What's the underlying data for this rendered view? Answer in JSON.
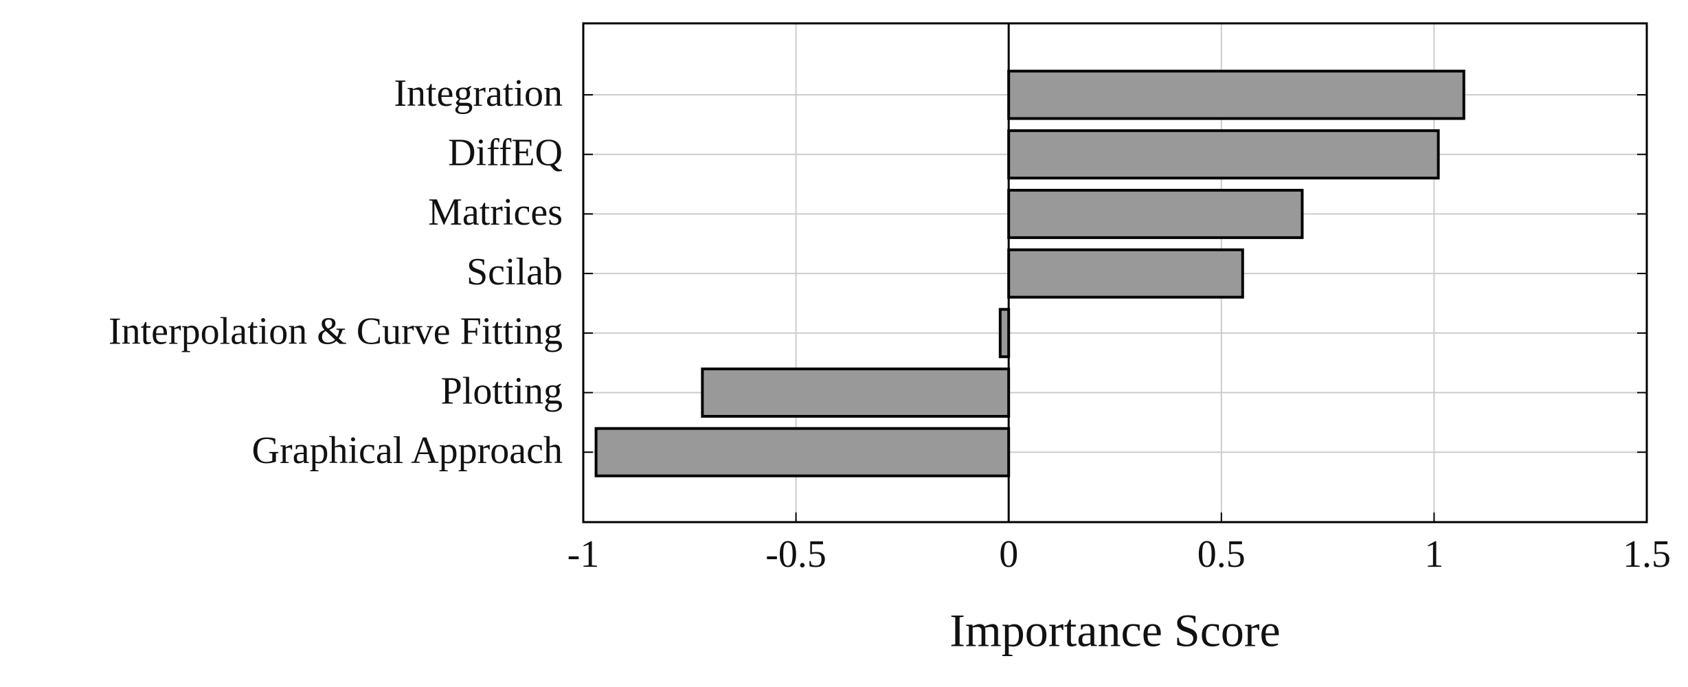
{
  "chart_data": {
    "type": "barh",
    "categories": [
      "Integration",
      "DiffEQ",
      "Matrices",
      "Scilab",
      "Interpolation & Curve Fitting",
      "Plotting",
      "Graphical Approach"
    ],
    "values": [
      1.07,
      1.01,
      0.69,
      0.55,
      -0.02,
      -0.72,
      -0.97
    ],
    "color": "#999999",
    "x_label": "Importance Score",
    "xlim": [
      -1,
      1.5
    ],
    "xticks": [
      -1,
      -0.5,
      0,
      0.5,
      1,
      1.5
    ],
    "grid": true
  }
}
